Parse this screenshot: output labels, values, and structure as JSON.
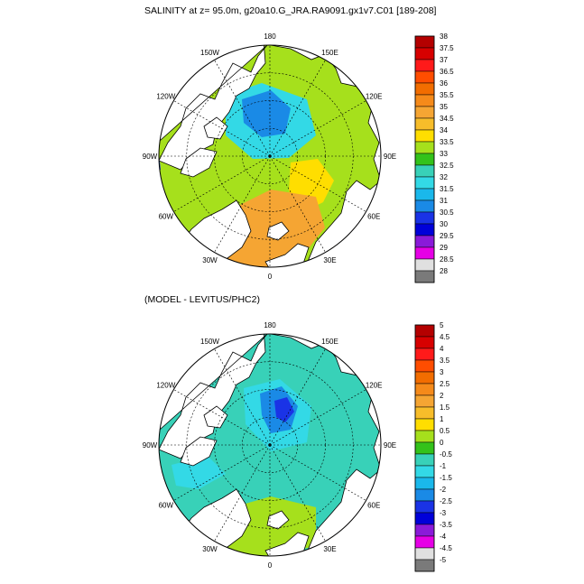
{
  "panels": [
    {
      "title": "SALINITY at z=  95.0m, g20a10.G_JRA.RA9091.gx1v7.C01 [189-208]",
      "longitude_labels": {
        "n": "180",
        "nw": "150W",
        "ne": "150E",
        "wnw": "120W",
        "ene": "120E",
        "w": "90W",
        "e": "90E",
        "wsw": "60W",
        "ese": "60E",
        "sw": "30W",
        "se": "30E",
        "s": "0"
      },
      "colorbar": {
        "labels": [
          "38",
          "37.5",
          "37",
          "36.5",
          "36",
          "35.5",
          "35",
          "34.5",
          "34",
          "33.5",
          "33",
          "32.5",
          "32",
          "31.5",
          "31",
          "30.5",
          "30",
          "29.5",
          "29",
          "28.5",
          "28"
        ],
        "colors": [
          "#b40000",
          "#d70000",
          "#ff1a1a",
          "#ff4d00",
          "#f26d00",
          "#f58a1a",
          "#f5a533",
          "#f7bd2a",
          "#ffde00",
          "#a6e01c",
          "#33c21a",
          "#38d1b8",
          "#33d9e6",
          "#1ab8eb",
          "#1a8ae6",
          "#1a33e6",
          "#0000d9",
          "#8a1ad9",
          "#e600e6",
          "#e0e0e0",
          "#7a7a7a"
        ]
      }
    },
    {
      "title": "(MODEL - LEVITUS/PHC2)",
      "longitude_labels": {
        "n": "180",
        "nw": "150W",
        "ne": "150E",
        "wnw": "120W",
        "ene": "120E",
        "w": "90W",
        "e": "90E",
        "wsw": "60W",
        "ese": "60E",
        "sw": "30W",
        "se": "30E",
        "s": "0"
      },
      "colorbar": {
        "labels": [
          "5",
          "4.5",
          "4",
          "3.5",
          "3",
          "2.5",
          "2",
          "1.5",
          "1",
          "0.5",
          "0",
          "-0.5",
          "-1",
          "-1.5",
          "-2",
          "-2.5",
          "-3",
          "-3.5",
          "-4",
          "-4.5",
          "-5"
        ],
        "colors": [
          "#b40000",
          "#d70000",
          "#ff1a1a",
          "#ff4d00",
          "#f26d00",
          "#f58a1a",
          "#f5a533",
          "#f7bd2a",
          "#ffde00",
          "#a6e01c",
          "#33c21a",
          "#38d1b8",
          "#33d9e6",
          "#1ab8eb",
          "#1a8ae6",
          "#1a33e6",
          "#0000d9",
          "#8a1ad9",
          "#e600e6",
          "#e0e0e0",
          "#7a7a7a"
        ]
      }
    }
  ],
  "style": {
    "land": "#ffffff",
    "coast": "#000000",
    "grid": "#000000"
  }
}
